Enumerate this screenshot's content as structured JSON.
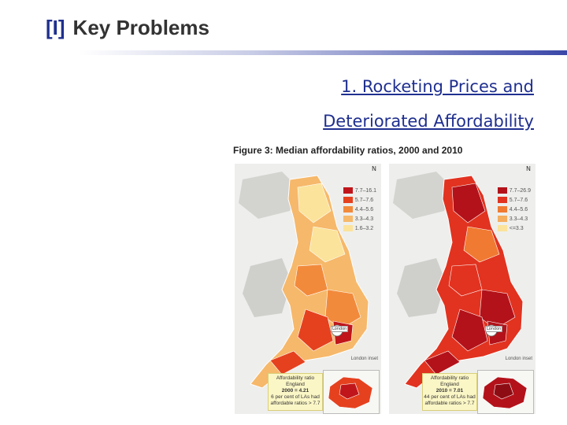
{
  "slide": {
    "number": "[I]",
    "title": "Key Problems",
    "subtitle_line1": "1. Rocketing Prices and",
    "subtitle_line2": "Deteriorated Affordability"
  },
  "figure": {
    "title": "Figure 3: Median affordability ratios, 2000 and 2010",
    "maps": [
      {
        "year": "2000",
        "legend": [
          "7.7–16.1",
          "5.7–7.6",
          "4.4–5.6",
          "3.3–4.3",
          "1.6–3.2"
        ],
        "colors": [
          "#c0161b",
          "#e5411f",
          "#f28a3c",
          "#f6b86a",
          "#fbe39b"
        ],
        "north": "N",
        "source": "London inset",
        "london_label": "London",
        "callout": {
          "line1": "Affordability ratio England",
          "line2": "2000 = 4.21",
          "line3": "6 per cent of LAs had",
          "line4": "affordable ratios > 7.7"
        }
      },
      {
        "year": "2010",
        "legend": [
          "7.7–26.9",
          "5.7–7.6",
          "4.4–5.6",
          "3.3–4.3",
          "<=3.3"
        ],
        "colors": [
          "#b3121a",
          "#e13320",
          "#f07a32",
          "#f5ad5e",
          "#fbe39b"
        ],
        "north": "N",
        "source": "London inset",
        "london_label": "London",
        "callout": {
          "line1": "Affordability ratio England",
          "line2": "2010 = 7.01",
          "line3": "44 per cent of LAs had",
          "line4": "affordable ratios > 7.7"
        }
      }
    ]
  }
}
